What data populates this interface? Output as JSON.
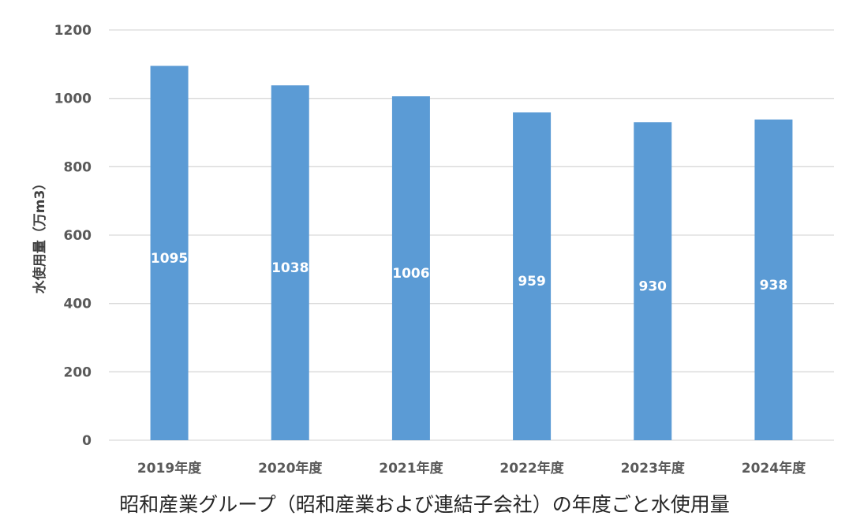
{
  "caption": "昭和産業グループ（昭和産業および連結子会社）の年度ごと水使用量",
  "chart_data": {
    "type": "bar",
    "categories": [
      "2019年度",
      "2020年度",
      "2021年度",
      "2022年度",
      "2023年度",
      "2024年度"
    ],
    "series": [
      {
        "values": [
          1095,
          1038,
          1006,
          959,
          930,
          938
        ]
      }
    ],
    "data_labels": [
      "1095",
      "1038",
      "1006",
      "959",
      "930",
      "938"
    ],
    "ylabel": "水使用量（万m3）",
    "ylim": [
      0,
      1200
    ],
    "yticks": [
      0,
      200,
      400,
      600,
      800,
      1000,
      1200
    ],
    "ytick_labels": [
      "0",
      "200",
      "400",
      "600",
      "800",
      "1000",
      "1200"
    ],
    "grid": true,
    "bar_color": "#5B9BD5",
    "grid_color": "#D9D9D9"
  }
}
